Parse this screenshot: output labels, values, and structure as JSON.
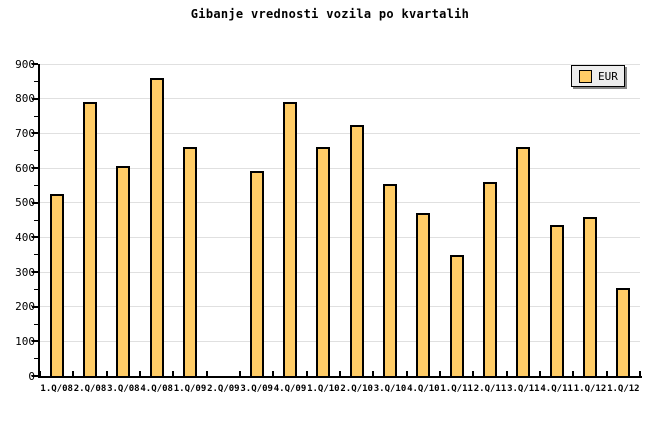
{
  "title": "Gibanje vrednosti vozila po kvartalih",
  "legend": {
    "label": "EUR"
  },
  "colors": {
    "background": "#ffffff",
    "bar_fill": "#ffcc66",
    "bar_border": "#000000",
    "grid": "#e0e0e0",
    "axis": "#000000",
    "legend_bg": "#ededed",
    "legend_shadow": "#888888",
    "text": "#000000"
  },
  "chart_data": {
    "type": "bar",
    "title": "Gibanje vrednosti vozila po kvartalih",
    "xlabel": "",
    "ylabel": "",
    "categories": [
      "1.Q/08",
      "2.Q/08",
      "3.Q/08",
      "4.Q/08",
      "1.Q/09",
      "2.Q/09",
      "3.Q/09",
      "4.Q/09",
      "1.Q/10",
      "2.Q/10",
      "3.Q/10",
      "4.Q/10",
      "1.Q/11",
      "2.Q/11",
      "3.Q/11",
      "4.Q/11",
      "1.Q/12",
      "1.Q/12"
    ],
    "series": [
      {
        "name": "EUR",
        "values": [
          525,
          790,
          605,
          860,
          660,
          null,
          590,
          790,
          660,
          725,
          555,
          470,
          350,
          560,
          660,
          435,
          460,
          255
        ]
      }
    ],
    "ylim": [
      0,
      900
    ],
    "y_ticks": [
      0,
      100,
      200,
      300,
      400,
      500,
      600,
      700,
      800,
      900
    ],
    "y_minor_step": 50,
    "grid": true,
    "legend_position": "top-right"
  }
}
